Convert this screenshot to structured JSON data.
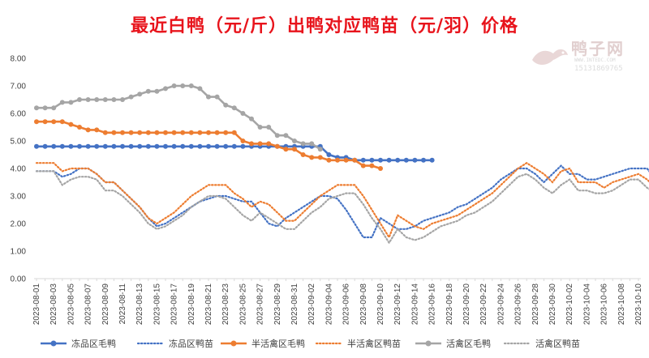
{
  "chart_data": {
    "type": "line",
    "title": "最近白鸭（元/斤）出鸭对应鸭苗（元/羽）价格",
    "xlabel": "",
    "ylabel": "",
    "ylim": [
      0,
      8
    ],
    "yticks": [
      "0.00",
      "1.00",
      "2.00",
      "3.00",
      "4.00",
      "5.00",
      "6.00",
      "7.00",
      "8.00"
    ],
    "x_tick_labels": [
      "2023-08-01",
      "2023-08-03",
      "2023-08-05",
      "2023-08-07",
      "2023-08-09",
      "2023-08-11",
      "2023-08-13",
      "2023-08-15",
      "2023-08-17",
      "2023-08-19",
      "2023-08-21",
      "2023-08-23",
      "2023-08-25",
      "2023-08-27",
      "2023-08-29",
      "2023-08-31",
      "2023-09-02",
      "2023-09-04",
      "2023-09-06",
      "2023-09-08",
      "2023-09-10",
      "2023-09-12",
      "2023-09-14",
      "2023-09-16",
      "2023-09-18",
      "2023-09-20",
      "2023-09-22",
      "2023-09-24",
      "2023-09-26",
      "2023-09-28",
      "2023-09-30",
      "2023-10-02",
      "2023-10-04",
      "2023-10-06",
      "2023-10-08",
      "2023-10-10"
    ],
    "legend_position": "bottom",
    "grid": false,
    "series": [
      {
        "name": "冻品区毛鸭",
        "color": "#4472c4",
        "style": "solid-markers",
        "x_start": "2023-08-01",
        "values": [
          4.8,
          4.8,
          4.8,
          4.8,
          4.8,
          4.8,
          4.8,
          4.8,
          4.8,
          4.8,
          4.8,
          4.8,
          4.8,
          4.8,
          4.8,
          4.8,
          4.8,
          4.8,
          4.8,
          4.8,
          4.8,
          4.8,
          4.8,
          4.8,
          4.8,
          4.8,
          4.8,
          4.8,
          4.8,
          4.8,
          4.8,
          4.8,
          4.8,
          4.8,
          4.5,
          4.4,
          4.4,
          4.3,
          4.3,
          4.3,
          4.3,
          4.3,
          4.3,
          4.3,
          4.3,
          4.3,
          4.3
        ]
      },
      {
        "name": "冻品区鸭苗",
        "color": "#4472c4",
        "style": "dotted",
        "x_start": "2023-08-01",
        "values": [
          3.9,
          3.9,
          3.9,
          3.7,
          3.8,
          4.0,
          4.0,
          3.8,
          3.5,
          3.5,
          3.2,
          2.9,
          2.6,
          2.2,
          1.9,
          2.0,
          2.2,
          2.4,
          2.6,
          2.8,
          2.9,
          3.0,
          3.0,
          2.9,
          2.8,
          2.8,
          2.4,
          2.0,
          1.9,
          2.2,
          2.4,
          2.6,
          2.8,
          3.0,
          3.0,
          2.9,
          2.5,
          2.0,
          1.5,
          1.5,
          2.2,
          2.0,
          1.8,
          1.8,
          1.9,
          2.1,
          2.2,
          2.3,
          2.4,
          2.6,
          2.7,
          2.9,
          3.1,
          3.3,
          3.6,
          3.8,
          4.0,
          4.0,
          3.8,
          3.5,
          3.8,
          4.1,
          3.8,
          3.8,
          3.6,
          3.6,
          3.7,
          3.8,
          3.9,
          4.0,
          4.0,
          4.0,
          3.6,
          3.4,
          3.5,
          3.0,
          2.8
        ]
      },
      {
        "name": "半活禽区毛鸭",
        "color": "#ed7d31",
        "style": "solid-markers",
        "x_start": "2023-08-01",
        "values": [
          5.7,
          5.7,
          5.7,
          5.7,
          5.6,
          5.5,
          5.4,
          5.4,
          5.3,
          5.3,
          5.3,
          5.3,
          5.3,
          5.3,
          5.3,
          5.3,
          5.3,
          5.3,
          5.3,
          5.3,
          5.3,
          5.3,
          5.3,
          5.3,
          5.0,
          4.9,
          4.9,
          4.9,
          4.8,
          4.7,
          4.7,
          4.5,
          4.4,
          4.4,
          4.3,
          4.3,
          4.3,
          4.3,
          4.1,
          4.1,
          4.0
        ]
      },
      {
        "name": "半活禽区鸭苗",
        "color": "#ed7d31",
        "style": "dotted",
        "x_start": "2023-08-01",
        "values": [
          4.2,
          4.2,
          4.2,
          3.9,
          4.0,
          4.0,
          4.0,
          3.8,
          3.5,
          3.5,
          3.2,
          2.9,
          2.6,
          2.2,
          2.0,
          2.2,
          2.4,
          2.7,
          3.0,
          3.2,
          3.4,
          3.4,
          3.4,
          3.1,
          2.9,
          2.6,
          2.8,
          2.7,
          2.4,
          2.1,
          2.1,
          2.4,
          2.7,
          3.0,
          3.2,
          3.4,
          3.4,
          3.4,
          3.0,
          2.5,
          2.0,
          1.5,
          2.3,
          2.1,
          1.9,
          1.8,
          2.0,
          2.1,
          2.2,
          2.3,
          2.5,
          2.7,
          2.9,
          3.1,
          3.4,
          3.7,
          4.0,
          4.2,
          4.0,
          3.8,
          3.5,
          3.9,
          4.0,
          3.5,
          3.5,
          3.5,
          3.3,
          3.5,
          3.6,
          3.7,
          3.8,
          3.6,
          3.3,
          3.3,
          3.3,
          3.2,
          3.0,
          2.8
        ]
      },
      {
        "name": "活禽区毛鸭",
        "color": "#a5a5a5",
        "style": "solid-markers",
        "x_start": "2023-08-01",
        "values": [
          6.2,
          6.2,
          6.2,
          6.4,
          6.4,
          6.5,
          6.5,
          6.5,
          6.5,
          6.5,
          6.5,
          6.6,
          6.7,
          6.8,
          6.8,
          6.9,
          7.0,
          7.0,
          7.0,
          6.9,
          6.6,
          6.6,
          6.3,
          6.2,
          6.0,
          5.8,
          5.5,
          5.5,
          5.2,
          5.2,
          5.0,
          4.9,
          4.9,
          4.7
        ]
      },
      {
        "name": "活禽区鸭苗",
        "color": "#a5a5a5",
        "style": "dotted",
        "x_start": "2023-08-01",
        "values": [
          3.9,
          3.9,
          3.9,
          3.4,
          3.6,
          3.7,
          3.7,
          3.6,
          3.2,
          3.2,
          3.0,
          2.7,
          2.4,
          2.0,
          1.8,
          1.9,
          2.1,
          2.3,
          2.6,
          2.8,
          3.0,
          3.0,
          2.9,
          2.6,
          2.3,
          2.1,
          2.4,
          2.2,
          2.0,
          1.8,
          1.8,
          2.1,
          2.4,
          2.6,
          2.9,
          3.0,
          3.1,
          3.1,
          2.7,
          2.2,
          1.8,
          1.3,
          1.8,
          1.5,
          1.4,
          1.5,
          1.7,
          1.9,
          2.0,
          2.1,
          2.3,
          2.4,
          2.6,
          2.8,
          3.1,
          3.4,
          3.7,
          3.8,
          3.6,
          3.3,
          3.1,
          3.4,
          3.6,
          3.2,
          3.2,
          3.1,
          3.1,
          3.2,
          3.4,
          3.6,
          3.6,
          3.3,
          3.1,
          3.0,
          3.0,
          2.8,
          2.7
        ]
      }
    ]
  },
  "watermark": {
    "title": "鸭子网",
    "url": "WWW.INTEDC.COM",
    "phone": "15131869765"
  }
}
